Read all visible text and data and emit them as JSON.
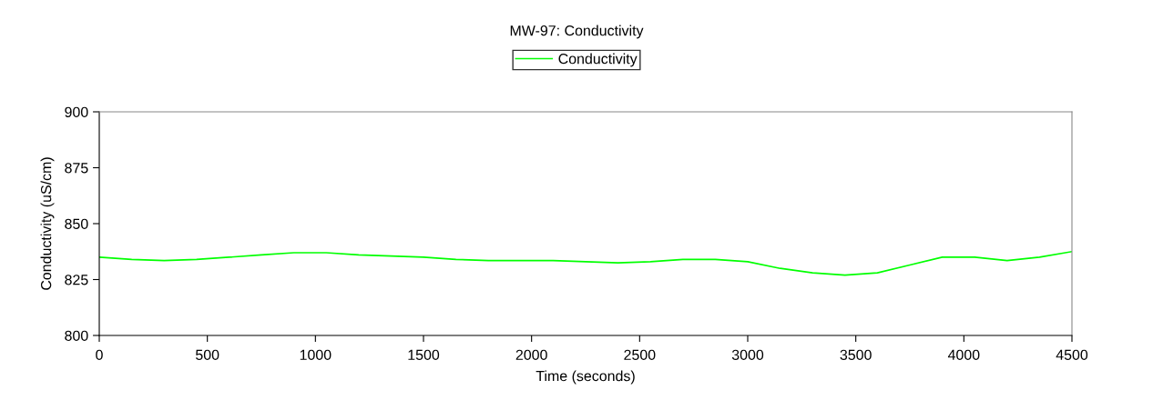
{
  "chart_data": {
    "type": "line",
    "title": "MW-97: Conductivity",
    "xlabel": "Time (seconds)",
    "ylabel": "Conductivity (uS/cm)",
    "x": [
      0,
      150,
      300,
      450,
      600,
      750,
      900,
      1050,
      1200,
      1350,
      1500,
      1650,
      1800,
      1950,
      2100,
      2250,
      2400,
      2550,
      2700,
      2850,
      3000,
      3150,
      3300,
      3450,
      3600,
      3750,
      3900,
      4050,
      4200,
      4350,
      4500
    ],
    "series": [
      {
        "name": "Conductivity",
        "color": "#00ff00",
        "values": [
          835,
          834,
          833.5,
          834,
          835,
          836,
          837,
          837,
          836,
          835.5,
          835,
          834,
          833.5,
          833.5,
          833.5,
          833,
          832.5,
          833,
          834,
          834,
          833,
          830,
          828,
          827,
          828,
          831.5,
          835,
          835,
          833.5,
          835,
          837.5
        ]
      }
    ],
    "xlim": [
      0,
      4500
    ],
    "xticks": [
      0,
      500,
      1000,
      1500,
      2000,
      2500,
      3000,
      3500,
      4000,
      4500
    ],
    "ylim": [
      800,
      900
    ],
    "yticks": [
      800,
      825,
      850,
      875,
      900
    ],
    "grid": false,
    "legend": "top",
    "marker": "none",
    "line_style": "solid"
  }
}
